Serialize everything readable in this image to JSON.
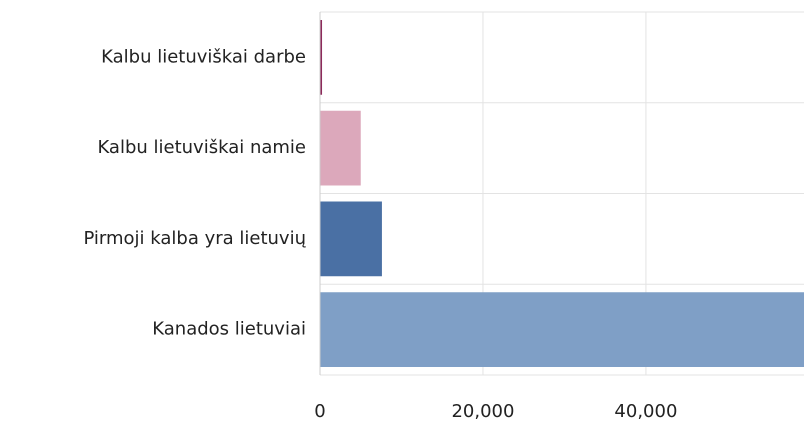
{
  "chart_data": {
    "type": "barh",
    "categories": [
      "Kalbu lietuviškai darbe",
      "Kalbu lietuviškai namie",
      "Pirmoji kalba yra lietuvių",
      "Kanados lietuviai"
    ],
    "values": [
      250,
      5000,
      7600,
      59400
    ],
    "colors": [
      "#8c2a5a",
      "#dca8bb",
      "#4a70a4",
      "#7f9fc6"
    ],
    "xlim": [
      0,
      59400
    ],
    "xticks": [
      0,
      {
        "value": 20000,
        "label": "20,000"
      },
      {
        "value": 40000,
        "label": "40,000"
      }
    ],
    "grid": true
  }
}
